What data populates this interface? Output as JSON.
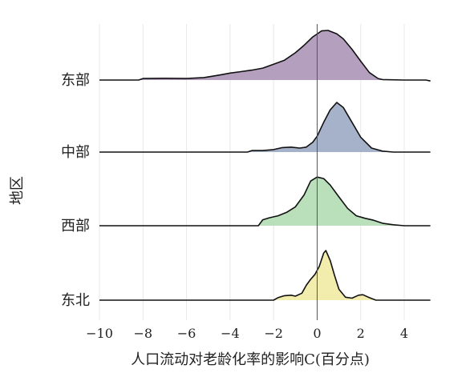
{
  "chart_data": {
    "type": "ridgeline",
    "xlabel": "人口流动对老龄化率的影响C(百分点)",
    "ylabel": "地区",
    "xlim": [
      -10,
      5.2
    ],
    "x_ticks": [
      -10,
      -8,
      -6,
      -4,
      -2,
      0,
      2,
      4
    ],
    "vertical_reference_line": 0,
    "grid": "vertical only",
    "legend": "none",
    "series": [
      {
        "name": "东部",
        "color": "#b59fbe",
        "density": [
          [
            -10,
            0
          ],
          [
            -8.2,
            0
          ],
          [
            -8,
            0.03
          ],
          [
            -7,
            0.035
          ],
          [
            -6,
            0.03
          ],
          [
            -5.2,
            0.05
          ],
          [
            -4.5,
            0.1
          ],
          [
            -4,
            0.14
          ],
          [
            -3.5,
            0.17
          ],
          [
            -3,
            0.2
          ],
          [
            -2.5,
            0.24
          ],
          [
            -2,
            0.32
          ],
          [
            -1.5,
            0.4
          ],
          [
            -1,
            0.55
          ],
          [
            -0.6,
            0.7
          ],
          [
            -0.2,
            0.87
          ],
          [
            0.2,
            0.99
          ],
          [
            0.5,
            1
          ],
          [
            0.9,
            0.93
          ],
          [
            1.2,
            0.83
          ],
          [
            1.6,
            0.62
          ],
          [
            2,
            0.38
          ],
          [
            2.4,
            0.15
          ],
          [
            2.8,
            0.03
          ],
          [
            3,
            0.01
          ],
          [
            4,
            0
          ],
          [
            5,
            0
          ],
          [
            5.2,
            -0.02
          ]
        ]
      },
      {
        "name": "中部",
        "color": "#a6b2ca",
        "density": [
          [
            -10,
            0
          ],
          [
            -3.2,
            0
          ],
          [
            -3,
            0.03
          ],
          [
            -2.5,
            0.03
          ],
          [
            -2,
            0.05
          ],
          [
            -1.6,
            0.09
          ],
          [
            -1.2,
            0.1
          ],
          [
            -0.8,
            0.08
          ],
          [
            -0.5,
            0.1
          ],
          [
            -0.2,
            0.2
          ],
          [
            0,
            0.32
          ],
          [
            0.3,
            0.6
          ],
          [
            0.6,
            0.85
          ],
          [
            0.9,
            1
          ],
          [
            1.2,
            0.9
          ],
          [
            1.6,
            0.6
          ],
          [
            2,
            0.3
          ],
          [
            2.5,
            0.08
          ],
          [
            3,
            0.02
          ],
          [
            3.5,
            0
          ],
          [
            5.2,
            0
          ]
        ]
      },
      {
        "name": "西部",
        "color": "#b9dfbb",
        "density": [
          [
            -10,
            0
          ],
          [
            -2.7,
            0
          ],
          [
            -2.5,
            0.12
          ],
          [
            -2.2,
            0.16
          ],
          [
            -1.8,
            0.2
          ],
          [
            -1.4,
            0.27
          ],
          [
            -1,
            0.38
          ],
          [
            -0.6,
            0.62
          ],
          [
            -0.3,
            0.9
          ],
          [
            0,
            0.98
          ],
          [
            0.3,
            0.95
          ],
          [
            0.6,
            0.82
          ],
          [
            1,
            0.58
          ],
          [
            1.4,
            0.35
          ],
          [
            1.8,
            0.2
          ],
          [
            2.2,
            0.15
          ],
          [
            2.6,
            0.11
          ],
          [
            3,
            0.05
          ],
          [
            3.5,
            0.02
          ],
          [
            4,
            0
          ],
          [
            5.2,
            0
          ]
        ]
      },
      {
        "name": "东北",
        "color": "#f3edad",
        "density": [
          [
            -10,
            0
          ],
          [
            -2,
            0
          ],
          [
            -1.8,
            0.05
          ],
          [
            -1.5,
            0.09
          ],
          [
            -1.2,
            0.1
          ],
          [
            -1,
            0.08
          ],
          [
            -0.7,
            0.14
          ],
          [
            -0.5,
            0.3
          ],
          [
            -0.3,
            0.42
          ],
          [
            -0.1,
            0.52
          ],
          [
            0.1,
            0.68
          ],
          [
            0.3,
            0.95
          ],
          [
            0.4,
            1
          ],
          [
            0.6,
            0.8
          ],
          [
            0.8,
            0.5
          ],
          [
            1,
            0.22
          ],
          [
            1.3,
            0.06
          ],
          [
            1.6,
            0.04
          ],
          [
            1.9,
            0.1
          ],
          [
            2.1,
            0.11
          ],
          [
            2.4,
            0.05
          ],
          [
            2.7,
            0
          ],
          [
            5.2,
            0
          ]
        ]
      }
    ]
  }
}
